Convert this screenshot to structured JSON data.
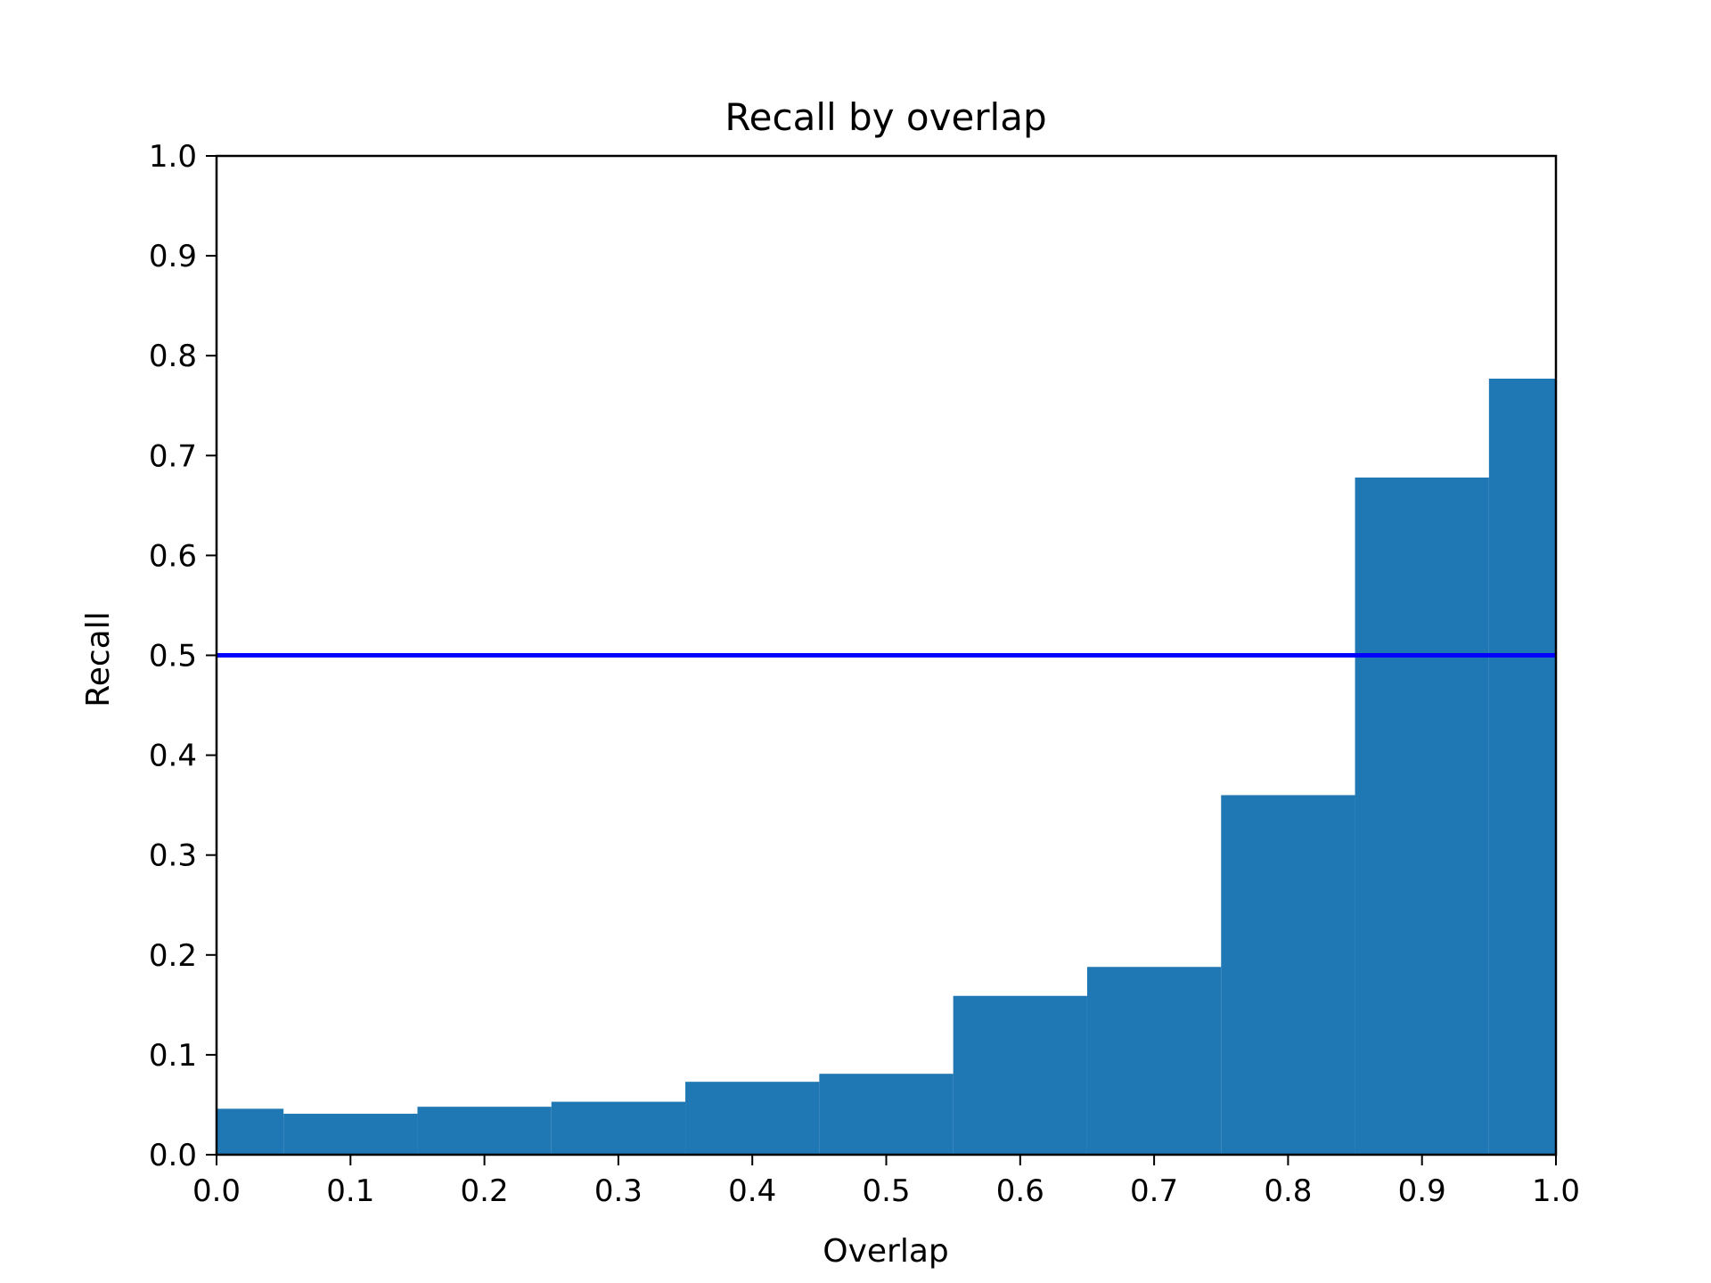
{
  "chart_data": {
    "type": "bar",
    "title": "Recall by overlap",
    "xlabel": "Overlap",
    "ylabel": "Recall",
    "xlim": [
      0.0,
      1.0
    ],
    "ylim": [
      0.0,
      1.0
    ],
    "xticks": [
      "0.0",
      "0.1",
      "0.2",
      "0.3",
      "0.4",
      "0.5",
      "0.6",
      "0.7",
      "0.8",
      "0.9",
      "1.0"
    ],
    "yticks": [
      "0.0",
      "0.1",
      "0.2",
      "0.3",
      "0.4",
      "0.5",
      "0.6",
      "0.7",
      "0.8",
      "0.9",
      "1.0"
    ],
    "grid": false,
    "bar_color": "#1f77b4",
    "bins": [
      {
        "x0": 0.0,
        "x1": 0.05,
        "value": 0.046
      },
      {
        "x0": 0.05,
        "x1": 0.15,
        "value": 0.041
      },
      {
        "x0": 0.15,
        "x1": 0.25,
        "value": 0.048
      },
      {
        "x0": 0.25,
        "x1": 0.35,
        "value": 0.053
      },
      {
        "x0": 0.35,
        "x1": 0.45,
        "value": 0.073
      },
      {
        "x0": 0.45,
        "x1": 0.55,
        "value": 0.081
      },
      {
        "x0": 0.55,
        "x1": 0.65,
        "value": 0.159
      },
      {
        "x0": 0.65,
        "x1": 0.75,
        "value": 0.188
      },
      {
        "x0": 0.75,
        "x1": 0.85,
        "value": 0.36
      },
      {
        "x0": 0.85,
        "x1": 0.95,
        "value": 0.678
      },
      {
        "x0": 0.95,
        "x1": 1.0,
        "value": 0.777
      }
    ],
    "reference_line": {
      "y": 0.5,
      "color": "#0000ff"
    }
  }
}
